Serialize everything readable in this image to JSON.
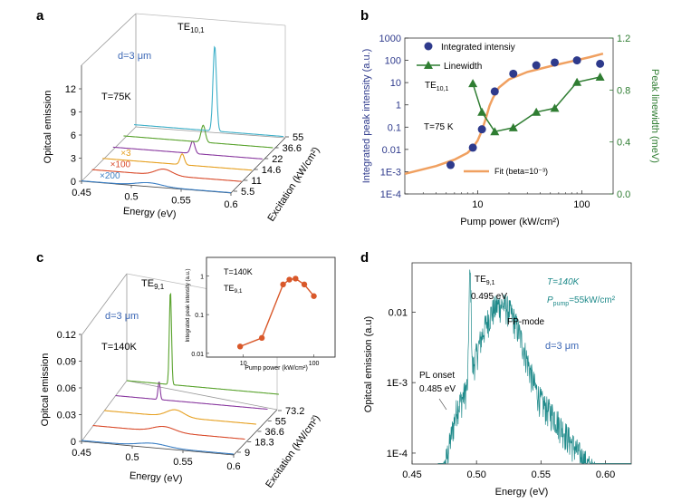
{
  "panel_labels": [
    "a",
    "b",
    "c",
    "d"
  ],
  "chart_data": [
    {
      "id": "a",
      "type": "line",
      "title": "",
      "xlabel": "Energy (eV)",
      "ylabel": "Opitcal emission",
      "zlabel": "Excitation (kW/cm²)",
      "xticks": [
        "0.45",
        "0.5",
        "0.55",
        "0.6"
      ],
      "yticks": [
        "0",
        "3",
        "6",
        "9",
        "12"
      ],
      "excitation_ticks": [
        "5.5",
        "11",
        "14.6",
        "22",
        "36.6",
        "55"
      ],
      "annotations": {
        "mode_main": "TE",
        "mode_sub": "10,1",
        "thickness": "d=3 μm",
        "temperature": "T=75K"
      },
      "series": [
        {
          "name": "5.5",
          "color": "#3b7fc4",
          "multiplier": "×200",
          "peak_x": 0.518,
          "peak_h": 0.45,
          "width": 0.018,
          "base": 0.05
        },
        {
          "name": "11",
          "color": "#d94b2b",
          "multiplier": "×100",
          "peak_x": 0.522,
          "peak_h": 0.8,
          "width": 0.012,
          "base": 0.05
        },
        {
          "name": "14.6",
          "color": "#e6a020",
          "multiplier": "×3",
          "peak_x": 0.53,
          "peak_h": 1.4,
          "width": 0.003,
          "base": 0.05
        },
        {
          "name": "22",
          "color": "#8a3aa0",
          "multiplier": "",
          "peak_x": 0.53,
          "peak_h": 1.6,
          "width": 0.003,
          "base": 0.05
        },
        {
          "name": "36.6",
          "color": "#5aa32e",
          "multiplier": "",
          "peak_x": 0.53,
          "peak_h": 2.2,
          "width": 0.003,
          "base": 0.05
        },
        {
          "name": "55",
          "color": "#3fb0c9",
          "multiplier": "",
          "peak_x": 0.531,
          "peak_h": 11.0,
          "width": 0.0025,
          "base": 0.05
        }
      ]
    },
    {
      "id": "b",
      "type": "scatter",
      "title": "",
      "xlabel": "Pump power (kW/cm²)",
      "ylabel": "Integrated peak intensity (a.u.)",
      "ylabel2": "Peak linewidth (meV)",
      "xscale": "log",
      "xlim": [
        2,
        200
      ],
      "yscale": "log",
      "ylim": [
        0.0001,
        1000
      ],
      "y2lim": [
        0,
        1.2
      ],
      "xticks": [
        "10",
        "100"
      ],
      "yticks": [
        "1E-4",
        "1E-3",
        "0.01",
        "0.1",
        "1",
        "10",
        "100",
        "1000"
      ],
      "y2ticks": [
        "0.0",
        "0.4",
        "0.8",
        "1.2"
      ],
      "annotations": {
        "mode_main": "TE",
        "mode_sub": "10,1",
        "temperature": "T=75 K"
      },
      "legend": [
        "Integrated intensiy",
        "Linewidth",
        "Fit (beta=10⁻³)"
      ],
      "series": [
        {
          "name": "Integrated intensiy",
          "color": "#2e3a8c",
          "x": [
            5.5,
            9,
            11,
            14.6,
            22,
            36.6,
            55,
            90,
            150
          ],
          "y": [
            0.002,
            0.012,
            0.08,
            4,
            25,
            60,
            80,
            100,
            70
          ]
        },
        {
          "name": "Linewidth",
          "color": "#2f7d32",
          "x": [
            9,
            11,
            14.6,
            22,
            36.6,
            55,
            90,
            150
          ],
          "y": [
            0.85,
            0.63,
            0.48,
            0.51,
            0.63,
            0.66,
            0.86,
            0.9
          ]
        },
        {
          "name": "Fit (beta=10⁻³)",
          "color": "#f0a060",
          "x": [
            2,
            4,
            6,
            8,
            9,
            10,
            11,
            12,
            13,
            14,
            16,
            20,
            30,
            50,
            80,
            120,
            160
          ],
          "y": [
            0.0008,
            0.0018,
            0.0035,
            0.007,
            0.012,
            0.025,
            0.07,
            0.25,
            0.9,
            2.0,
            6,
            14,
            30,
            55,
            90,
            140,
            200
          ]
        }
      ]
    },
    {
      "id": "c",
      "type": "line",
      "title": "",
      "xlabel": "Energy (eV)",
      "ylabel": "Opitcal emission",
      "zlabel": "Excitation (kW/cm²)",
      "xticks": [
        "0.45",
        "0.5",
        "0.55",
        "0.6"
      ],
      "yticks": [
        "0",
        "0.03",
        "0.06",
        "0.09",
        "0.12"
      ],
      "excitation_ticks": [
        "9",
        "18.3",
        "36.6",
        "55",
        "73.2"
      ],
      "annotations": {
        "mode_main": "TE",
        "mode_sub": "9,1",
        "thickness": "d=3 μm",
        "temperature": "T=140K"
      },
      "series": [
        {
          "name": "9",
          "color": "#3b7fc4",
          "peak_x": 0.52,
          "peak_h": 0.004,
          "width": 0.02,
          "base": 0.001
        },
        {
          "name": "18.3",
          "color": "#d94b2b",
          "peak_x": 0.52,
          "peak_h": 0.006,
          "width": 0.015,
          "base": 0.001
        },
        {
          "name": "36.6",
          "color": "#e6a020",
          "peak_x": 0.52,
          "peak_h": 0.008,
          "width": 0.012,
          "base": 0.001
        },
        {
          "name": "55",
          "color": "#8a3aa0",
          "peak_x": 0.493,
          "peak_h": 0.02,
          "width": 0.0015,
          "base": 0.001
        },
        {
          "name": "73.2",
          "color": "#5aa32e",
          "peak_x": 0.493,
          "peak_h": 0.105,
          "width": 0.0015,
          "base": 0.001
        }
      ],
      "inset": {
        "type": "scatter",
        "xlabel": "Pump power (kW/cm²)",
        "ylabel": "Integrated peak intensity (a.u.)",
        "xscale": "log",
        "yscale": "log",
        "xticks": [
          "10",
          "100"
        ],
        "yticks": [
          "0.01",
          "0.1",
          "1"
        ],
        "annotations": {
          "temperature": "T=140K",
          "mode_main": "TE",
          "mode_sub": "9,1"
        },
        "series": [
          {
            "name": "",
            "color": "#d9582a",
            "x": [
              9,
              18.3,
              36.6,
              45,
              55,
              73.2,
              100
            ],
            "y": [
              0.015,
              0.025,
              0.6,
              0.8,
              0.85,
              0.6,
              0.3
            ]
          }
        ]
      }
    },
    {
      "id": "d",
      "type": "line",
      "title": "",
      "xlabel": "Energy (eV)",
      "ylabel": "Opitcal emission (a.u)",
      "xlim": [
        0.45,
        0.62
      ],
      "yscale": "log",
      "ylim": [
        7e-05,
        0.05
      ],
      "xticks": [
        "0.45",
        "0.50",
        "0.55",
        "0.60"
      ],
      "yticks": [
        "1E-4",
        "1E-3",
        "0.01"
      ],
      "annotations": {
        "mode_main": "TE",
        "mode_sub": "9,1",
        "mode_energy": "0.495 eV",
        "temperature": "T=140K",
        "pump_main": "P",
        "pump_sub": "pump",
        "pump_value": "=55kW/cm²",
        "fp_mode": "FP-mode",
        "thickness": "d=3 μm",
        "pl_onset": "PL onset",
        "pl_onset_energy": "0.485 eV"
      },
      "series": [
        {
          "name": "",
          "color": "#1f8a8a"
        }
      ]
    }
  ]
}
